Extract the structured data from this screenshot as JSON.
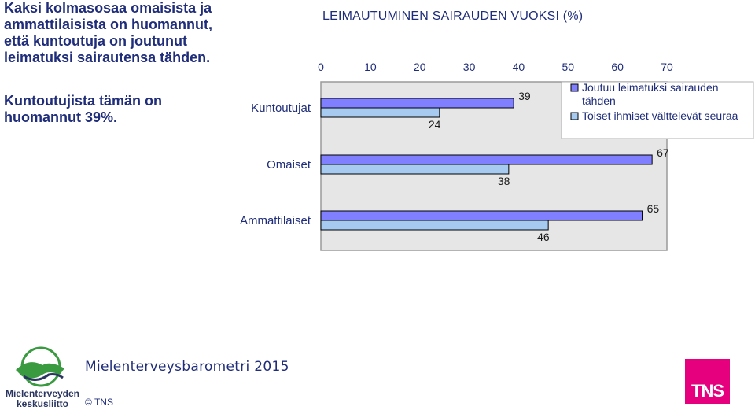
{
  "heading": "Kaksi kolmasosaa omaisista ja ammattilaisista on huomannut, että kuntoutuja on joutunut leimatuksi sairautensa tähden.",
  "subtext": "Kuntoutujista tämän on huomannut 39%.",
  "footer": {
    "brand": "Mielenterveysbarometri 2015",
    "copyright": "© TNS",
    "logo_text_line1": "Mielenterveyden",
    "logo_text_line2": "keskusliitto",
    "tns_logo": "TNS"
  },
  "colors": {
    "series1": "#7f7fff",
    "series2": "#a6caf0",
    "plot_bg": "#e6e6e6",
    "text": "#1f2d7a",
    "tns": "#e6007e"
  },
  "chart_data": {
    "type": "bar",
    "orientation": "horizontal",
    "title": "LEIMAUTUMINEN SAIRAUDEN VUOKSI (%)",
    "categories": [
      "Kuntoutujat",
      "Omaiset",
      "Ammattilaiset"
    ],
    "series": [
      {
        "name": "Joutuu leimatuksi sairauden tähden",
        "values": [
          39,
          67,
          65
        ]
      },
      {
        "name": "Toiset ihmiset välttelevät seuraa",
        "values": [
          24,
          38,
          46
        ]
      }
    ],
    "xlim": [
      0,
      70
    ],
    "xticks": [
      0,
      10,
      20,
      30,
      40,
      50,
      60,
      70
    ],
    "axis_position": "top",
    "legend": "top-right",
    "grid": false
  }
}
